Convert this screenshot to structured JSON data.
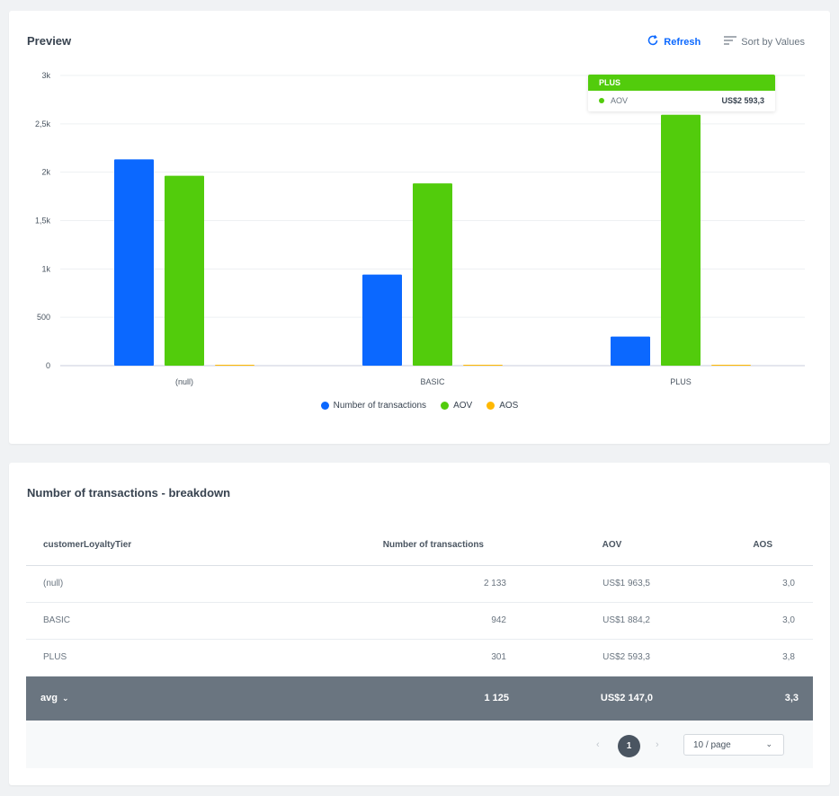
{
  "preview": {
    "title": "Preview",
    "refresh_label": "Refresh",
    "sort_label": "Sort by Values",
    "tooltip": {
      "category": "PLUS",
      "series": "AOV",
      "value": "US$2 593,3"
    }
  },
  "chart_data": {
    "type": "bar",
    "categories": [
      "(null)",
      "BASIC",
      "PLUS"
    ],
    "series": [
      {
        "name": "Number of transactions",
        "color": "#0b68ff",
        "values": [
          2133,
          942,
          301
        ]
      },
      {
        "name": "AOV",
        "color": "#52cc0c",
        "values": [
          1963.5,
          1884.2,
          2593.3
        ]
      },
      {
        "name": "AOS",
        "color": "#ffb800",
        "values": [
          3.0,
          3.0,
          3.8
        ]
      }
    ],
    "yticks": [
      "0",
      "500",
      "1k",
      "1,5k",
      "2k",
      "2,5k",
      "3k"
    ],
    "ylim": [
      0,
      3000
    ],
    "grid": true,
    "legend": "bottom-center"
  },
  "breakdown": {
    "title": "Number of transactions - breakdown",
    "columns": [
      "customerLoyaltyTier",
      "Number of transactions",
      "AOV",
      "AOS"
    ],
    "rows": [
      [
        "(null)",
        "2 133",
        "US$1 963,5",
        "3,0"
      ],
      [
        "BASIC",
        "942",
        "US$1 884,2",
        "3,0"
      ],
      [
        "PLUS",
        "301",
        "US$2 593,3",
        "3,8"
      ]
    ],
    "summary": {
      "label": "avg",
      "transactions": "1 125",
      "aov": "US$2 147,0",
      "aos": "3,3"
    },
    "pagination": {
      "current_page": "1",
      "page_size": "10 / page"
    }
  }
}
